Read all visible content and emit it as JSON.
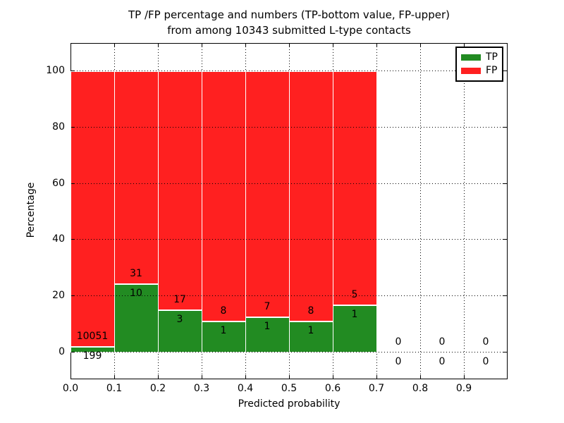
{
  "chart_data": {
    "type": "bar",
    "stacked": true,
    "normalized_to_percent": true,
    "title_line1": "TP /FP percentage and numbers (TP-bottom value, FP-upper)",
    "title_line2": "from among 10343 submitted L-type contacts",
    "xlabel": "Predicted probability",
    "ylabel": "Percentage",
    "xlim": [
      0.0,
      1.0
    ],
    "ylim": [
      -10,
      110
    ],
    "x_tick_labels": [
      "0.0",
      "0.1",
      "0.2",
      "0.3",
      "0.4",
      "0.5",
      "0.6",
      "0.7",
      "0.8",
      "0.9"
    ],
    "x_tick_values": [
      0.0,
      0.1,
      0.2,
      0.3,
      0.4,
      0.5,
      0.6,
      0.7,
      0.8,
      0.9
    ],
    "y_tick_labels": [
      "0",
      "20",
      "40",
      "60",
      "80",
      "100"
    ],
    "y_tick_values": [
      0,
      20,
      40,
      60,
      80,
      100
    ],
    "grid": true,
    "grid_style": "dotted",
    "legend_position": "upper right",
    "legend": [
      {
        "label": "TP",
        "color": "#228b22"
      },
      {
        "label": "FP",
        "color": "#ff2020"
      }
    ],
    "colors": {
      "tp": "#228b22",
      "fp": "#ff2020",
      "bar_edge": "#ffffff"
    },
    "total_contacts": 10343,
    "bin_width": 0.1,
    "bars": [
      {
        "x_start": 0.0,
        "tp_count": 199,
        "fp_count": 10051,
        "tp_pct": 1.94,
        "fp_pct": 98.06
      },
      {
        "x_start": 0.1,
        "tp_count": 10,
        "fp_count": 31,
        "tp_pct": 24.39,
        "fp_pct": 75.61
      },
      {
        "x_start": 0.2,
        "tp_count": 3,
        "fp_count": 17,
        "tp_pct": 15.0,
        "fp_pct": 85.0
      },
      {
        "x_start": 0.3,
        "tp_count": 1,
        "fp_count": 8,
        "tp_pct": 11.11,
        "fp_pct": 88.89
      },
      {
        "x_start": 0.4,
        "tp_count": 1,
        "fp_count": 7,
        "tp_pct": 12.5,
        "fp_pct": 87.5
      },
      {
        "x_start": 0.5,
        "tp_count": 1,
        "fp_count": 8,
        "tp_pct": 11.11,
        "fp_pct": 88.89
      },
      {
        "x_start": 0.6,
        "tp_count": 1,
        "fp_count": 5,
        "tp_pct": 16.67,
        "fp_pct": 83.33
      },
      {
        "x_start": 0.7,
        "tp_count": 0,
        "fp_count": 0,
        "tp_pct": 0,
        "fp_pct": 0
      },
      {
        "x_start": 0.8,
        "tp_count": 0,
        "fp_count": 0,
        "tp_pct": 0,
        "fp_pct": 0
      },
      {
        "x_start": 0.9,
        "tp_count": 0,
        "fp_count": 0,
        "tp_pct": 0,
        "fp_pct": 0
      }
    ]
  }
}
